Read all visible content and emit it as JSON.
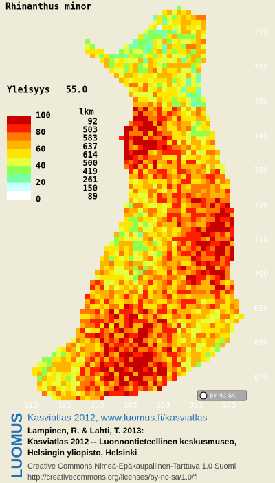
{
  "header": {
    "title": "Rhinanthus minor",
    "frequency_label": "Yleisyys",
    "frequency_value": "55.0"
  },
  "legend": {
    "count_header": "lkm",
    "scale_labels": [
      "100",
      "80",
      "60",
      "40",
      "20",
      "0"
    ],
    "classes": [
      {
        "color": "#c80000",
        "count": "92"
      },
      {
        "color": "#ff1e00",
        "count": "503"
      },
      {
        "color": "#ff7800",
        "count": "583"
      },
      {
        "color": "#ffb400",
        "count": "637"
      },
      {
        "color": "#ffe600",
        "count": "614"
      },
      {
        "color": "#e6ff3c",
        "count": "500"
      },
      {
        "color": "#8cff50",
        "count": "419"
      },
      {
        "color": "#78ffaa",
        "count": "261"
      },
      {
        "color": "#c8ffff",
        "count": "150"
      },
      {
        "color": "#ffffff",
        "count": "89"
      }
    ]
  },
  "map": {
    "y_labels": [
      "770",
      "760",
      "750",
      "740",
      "730",
      "720",
      "710",
      "700",
      "690",
      "680",
      "670"
    ],
    "x_labels": [
      "310",
      "320",
      "330",
      "340",
      "350",
      "360",
      "370"
    ],
    "license_badge": "BY-NC-SA"
  },
  "footer": {
    "logo": "LUOMUS",
    "link": "Kasviatlas 2012, www.luomus.fi/kasviatlas",
    "citation": [
      "Lampinen, R. & Lahti, T. 2013:",
      "Kasviatlas 2012 -- Luonnontieteellinen keskusmuseo,",
      "Helsingin yliopisto, Helsinki"
    ],
    "license": "Creative Commons Nimeä-Epäkaupallinen-Tarttuva 1.0 Suomi",
    "license_url": "http://creativecommons.org/licenses/by-nc-sa/1.0/fi"
  }
}
